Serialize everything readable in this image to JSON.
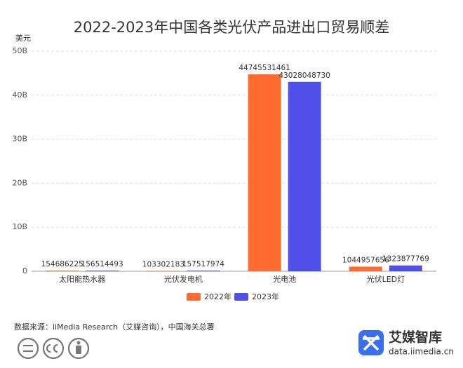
{
  "chart_data": {
    "type": "bar",
    "title": "2022-2023年中国各类光伏产品进出口贸易顺差",
    "y_axis_label": "美元",
    "categories": [
      "太阳能热水器",
      "光伏发电机",
      "光电池",
      "光伏LED灯"
    ],
    "series": [
      {
        "name": "2022年",
        "color": "#fe6b2f",
        "values": [
          154686225,
          103302183,
          44745531461,
          1044957656
        ]
      },
      {
        "name": "2023年",
        "color": "#5050e8",
        "values": [
          156514493,
          157517974,
          43028048730,
          1323877769
        ]
      }
    ],
    "ylim": [
      0,
      50000000000
    ],
    "yticks": [
      0,
      {
        "value": 10000000000,
        "label": "10B"
      },
      {
        "value": 20000000000,
        "label": "20B"
      },
      {
        "value": 30000000000,
        "label": "30B"
      },
      {
        "value": 40000000000,
        "label": "40B"
      },
      {
        "value": 50000000000,
        "label": "50B"
      }
    ],
    "grid": true,
    "legend": "bottom",
    "source": "数据来源：iiMedia Research（艾媒咨询），中国海关总署",
    "brand": "艾媒智库",
    "brand_url": "data.iimedia.cn"
  }
}
